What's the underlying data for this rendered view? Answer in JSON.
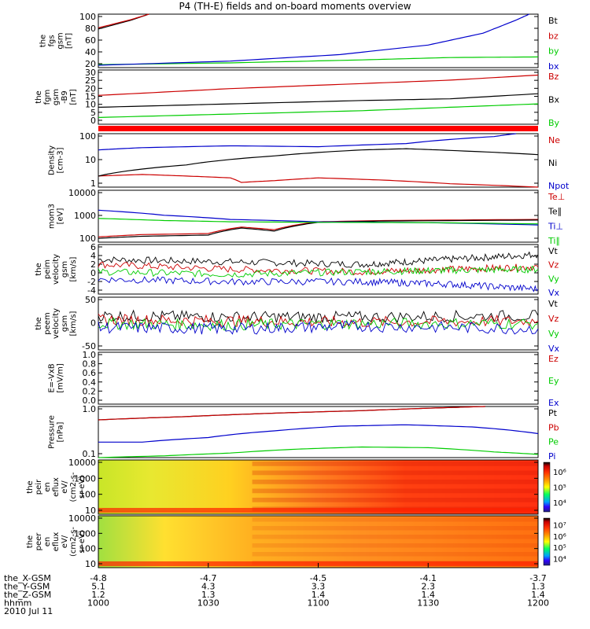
{
  "title": "P4 (TH-E) fields and on-board moments overview",
  "colors": {
    "black": "#000000",
    "red": "#cc0000",
    "green": "#00cc00",
    "blue": "#0000cc",
    "bar": "#ff0000"
  },
  "chart_data": [
    {
      "type": "line",
      "ylabel": [
        "the",
        "fgs",
        "gsm",
        "[nT]"
      ],
      "ylim": [
        10,
        100
      ],
      "yticks": [
        "100",
        "80",
        "60",
        "40",
        "20"
      ],
      "legend": [
        {
          "name": "Bt",
          "color": "black"
        },
        {
          "name": "bz",
          "color": "red"
        },
        {
          "name": "by",
          "color": "green"
        },
        {
          "name": "bx",
          "color": "blue"
        }
      ],
      "series": [
        {
          "name": "Bt",
          "color": "black",
          "x": [
            1000,
            1015,
            1023
          ],
          "y": [
            75,
            90,
            100
          ]
        },
        {
          "name": "bz",
          "color": "red",
          "x": [
            1000,
            1015,
            1023
          ],
          "y": [
            77,
            91,
            100
          ]
        },
        {
          "name": "by",
          "color": "green",
          "x": [
            1000,
            1060,
            1120,
            1160,
            1200
          ],
          "y": [
            15,
            18,
            23,
            27,
            28
          ]
        },
        {
          "name": "bx",
          "color": "blue",
          "x": [
            1000,
            1060,
            1110,
            1150,
            1175,
            1190,
            1196
          ],
          "y": [
            14,
            21,
            32,
            48,
            68,
            90,
            100
          ]
        }
      ]
    },
    {
      "type": "line",
      "ylabel": [
        "the",
        "fgm",
        "gsm",
        "-B9",
        "[nT]"
      ],
      "ylim": [
        -2,
        30
      ],
      "yticks": [
        "30",
        "25",
        "20",
        "15",
        "10",
        "5",
        "0"
      ],
      "legend": [
        {
          "name": "Bz",
          "color": "red"
        },
        {
          "name": "Bx",
          "color": "black"
        },
        {
          "name": "By",
          "color": "green"
        }
      ],
      "series": [
        {
          "name": "Bz",
          "color": "red",
          "x": [
            1000,
            1060,
            1120,
            1160,
            1200
          ],
          "y": [
            15,
            19,
            22,
            24,
            27
          ]
        },
        {
          "name": "Bx",
          "color": "black",
          "x": [
            1000,
            1060,
            1120,
            1160,
            1200
          ],
          "y": [
            8,
            10,
            12,
            13,
            16
          ]
        },
        {
          "name": "By",
          "color": "green",
          "x": [
            1000,
            1060,
            1120,
            1160,
            1200
          ],
          "y": [
            2,
            4,
            6,
            8,
            10
          ]
        }
      ]
    },
    {
      "type": "line",
      "ylabel": [
        "Density",
        "[cm-3]"
      ],
      "ylog": true,
      "ylim": [
        1,
        200
      ],
      "yticks": [
        "100",
        "10",
        "1"
      ],
      "legend": [
        {
          "name": "Ne",
          "color": "red"
        },
        {
          "name": "Ni",
          "color": "black"
        },
        {
          "name": "Npot",
          "color": "blue"
        }
      ],
      "series": [
        {
          "name": "Ne",
          "color": "red",
          "x": [
            1000,
            1020,
            1040,
            1060,
            1065,
            1080,
            1100,
            1130,
            1160,
            1200
          ],
          "y": [
            3,
            3.5,
            3,
            2.5,
            1.6,
            1.9,
            2.5,
            2,
            1.4,
            1
          ]
        },
        {
          "name": "Ni",
          "color": "black",
          "x": [
            1000,
            1040,
            1080,
            1120,
            1140,
            1160,
            1200
          ],
          "y": [
            3,
            9,
            22,
            40,
            45,
            38,
            25
          ]
        },
        {
          "name": "Npot",
          "color": "blue",
          "x": [
            1000,
            1020,
            1060,
            1100,
            1140,
            1180,
            1190
          ],
          "y": [
            40,
            50,
            60,
            55,
            75,
            150,
            200
          ]
        }
      ]
    },
    {
      "type": "line",
      "ylabel": [
        "mom3",
        "[eV]"
      ],
      "ylog": true,
      "ylim": [
        40,
        10000
      ],
      "yticks": [
        "10000",
        "1000",
        "100"
      ],
      "legend": [
        {
          "name": "Te⊥",
          "color": "red"
        },
        {
          "name": "Te∥",
          "color": "black"
        },
        {
          "name": "Ti⊥",
          "color": "blue"
        },
        {
          "name": "Ti∥",
          "color": "green"
        }
      ],
      "series": [
        {
          "name": "Te⊥",
          "color": "red",
          "x": [
            1000,
            1020,
            1050,
            1065,
            1080,
            1100,
            1130,
            1200
          ],
          "y": [
            70,
            90,
            100,
            200,
            150,
            350,
            400,
            450
          ]
        },
        {
          "name": "Te∥",
          "color": "black",
          "x": [
            1000,
            1020,
            1050,
            1065,
            1080,
            1100,
            1130,
            1200
          ],
          "y": [
            60,
            75,
            85,
            180,
            130,
            330,
            380,
            420
          ]
        },
        {
          "name": "Ti⊥",
          "color": "blue",
          "x": [
            1000,
            1030,
            1060,
            1100,
            1150,
            1200
          ],
          "y": [
            1200,
            700,
            450,
            350,
            320,
            250
          ]
        },
        {
          "name": "Ti∥",
          "color": "green",
          "x": [
            1000,
            1030,
            1060,
            1100,
            1150,
            1200
          ],
          "y": [
            500,
            400,
            350,
            330,
            320,
            280
          ]
        }
      ]
    },
    {
      "type": "line",
      "ylabel": [
        "the",
        "peim",
        "velocity",
        "gsm",
        "[km/s]"
      ],
      "ylim": [
        -4,
        6
      ],
      "yticks": [
        "6",
        "4",
        "2",
        "0",
        "-2",
        "-4"
      ],
      "legend": [
        {
          "name": "Vt",
          "color": "black"
        },
        {
          "name": "Vz",
          "color": "red"
        },
        {
          "name": "Vy",
          "color": "green"
        },
        {
          "name": "Vx",
          "color": "blue"
        }
      ],
      "series": [
        {
          "name": "Vt",
          "color": "black",
          "x": [
            1000,
            1060,
            1120,
            1160,
            1200
          ],
          "y": [
            3,
            2.5,
            2,
            3,
            4
          ]
        },
        {
          "name": "Vz",
          "color": "red",
          "x": [
            1000,
            1060,
            1120,
            1160,
            1200
          ],
          "y": [
            2,
            1,
            0.5,
            1,
            1.5
          ]
        },
        {
          "name": "Vy",
          "color": "green",
          "x": [
            1000,
            1060,
            1120,
            1160,
            1200
          ],
          "y": [
            0.5,
            0,
            0.5,
            0.8,
            1
          ]
        },
        {
          "name": "Vx",
          "color": "blue",
          "x": [
            1000,
            1060,
            1120,
            1160,
            1200
          ],
          "y": [
            -1,
            -1.5,
            -1.5,
            -2,
            -3
          ]
        }
      ]
    },
    {
      "type": "line",
      "ylabel": [
        "the",
        "peem",
        "velocity",
        "gsm",
        "[km/s]"
      ],
      "ylim": [
        -100,
        100
      ],
      "yticks": [
        "50",
        "0",
        "-50"
      ],
      "legend": [
        {
          "name": "Vt",
          "color": "black"
        },
        {
          "name": "Vz",
          "color": "red"
        },
        {
          "name": "Vy",
          "color": "green"
        },
        {
          "name": "Vx",
          "color": "blue"
        }
      ],
      "series": [
        {
          "name": "Vt",
          "color": "black",
          "x": [
            1000,
            1060,
            1120,
            1200
          ],
          "y": [
            30,
            25,
            25,
            30
          ]
        },
        {
          "name": "Vz",
          "color": "red",
          "x": [
            1000,
            1060,
            1120,
            1200
          ],
          "y": [
            15,
            10,
            5,
            10
          ]
        },
        {
          "name": "Vy",
          "color": "green",
          "x": [
            1000,
            1060,
            1120,
            1200
          ],
          "y": [
            0,
            -5,
            0,
            0
          ]
        },
        {
          "name": "Vx",
          "color": "blue",
          "x": [
            1000,
            1060,
            1120,
            1200
          ],
          "y": [
            -15,
            -20,
            -10,
            -20
          ]
        }
      ]
    },
    {
      "type": "line",
      "ylabel": [
        "E=-VxB",
        "[mV/m]"
      ],
      "ylim": [
        0,
        1
      ],
      "yticks": [
        "1.0",
        "0.8",
        "0.6",
        "0.4",
        "0.2",
        "0.0"
      ],
      "legend": [
        {
          "name": "Ez",
          "color": "red"
        },
        {
          "name": "Ey",
          "color": "green"
        },
        {
          "name": "Ex",
          "color": "blue"
        }
      ],
      "series": []
    },
    {
      "type": "line",
      "ylabel": [
        "Pressure",
        "[nPa]"
      ],
      "ylog": true,
      "ylim": [
        0.05,
        10
      ],
      "yticks": [
        "1.0",
        "0.1"
      ],
      "legend": [
        {
          "name": "Pt",
          "color": "black"
        },
        {
          "name": "Pb",
          "color": "red"
        },
        {
          "name": "Pe",
          "color": "green"
        },
        {
          "name": "Pi",
          "color": "blue"
        }
      ],
      "series": [
        {
          "name": "Pt",
          "color": "black",
          "x": [
            1000,
            1040,
            1080,
            1120,
            1160,
            1176
          ],
          "y": [
            2.5,
            3.5,
            5,
            6.5,
            9,
            10
          ]
        },
        {
          "name": "Pb",
          "color": "red",
          "x": [
            1000,
            1040,
            1080,
            1120,
            1160,
            1176
          ],
          "y": [
            2.5,
            3.5,
            5,
            6.5,
            9,
            10
          ]
        },
        {
          "name": "Pi",
          "color": "blue",
          "x": [
            1000,
            1020,
            1050,
            1080,
            1110,
            1140,
            1170,
            1200
          ],
          "y": [
            0.25,
            0.25,
            0.4,
            0.8,
            1.3,
            1.5,
            1.2,
            0.6
          ]
        },
        {
          "name": "Pe",
          "color": "green",
          "x": [
            1000,
            1030,
            1060,
            1090,
            1120,
            1150,
            1180,
            1200
          ],
          "y": [
            0.05,
            0.06,
            0.08,
            0.12,
            0.15,
            0.14,
            0.09,
            0.07
          ]
        }
      ]
    },
    {
      "type": "heatmap",
      "ylabel": [
        "the",
        "peir",
        "en",
        "eflux",
        "eV/",
        "(cm2-s-",
        "sr-eV)"
      ],
      "yticks": [
        "10000",
        "1000",
        "100",
        "10"
      ],
      "colorbar": [
        "10⁶",
        "10⁵",
        "10⁴"
      ]
    },
    {
      "type": "heatmap",
      "ylabel": [
        "the",
        "peer",
        "en",
        "eflux",
        "eV/",
        "(cm2-s-",
        "sr-eV)"
      ],
      "yticks": [
        "10000",
        "1000",
        "100",
        "10"
      ],
      "colorbar": [
        "10⁷",
        "10⁶",
        "10⁵",
        "10⁴"
      ]
    }
  ],
  "axis_rows": {
    "labels": [
      "the_X-GSM",
      "the_Y-GSM",
      "the_Z-GSM",
      "hhmm",
      "2010 Jul 11"
    ],
    "columns": [
      [
        "-4.8",
        "5.1",
        "1.2",
        "1000"
      ],
      [
        "-4.7",
        "4.3",
        "1.3",
        "1030"
      ],
      [
        "-4.5",
        "3.3",
        "1.4",
        "1100"
      ],
      [
        "-4.1",
        "2.3",
        "1.4",
        "1130"
      ],
      [
        "-3.7",
        "1.3",
        "1.4",
        "1200"
      ]
    ]
  }
}
